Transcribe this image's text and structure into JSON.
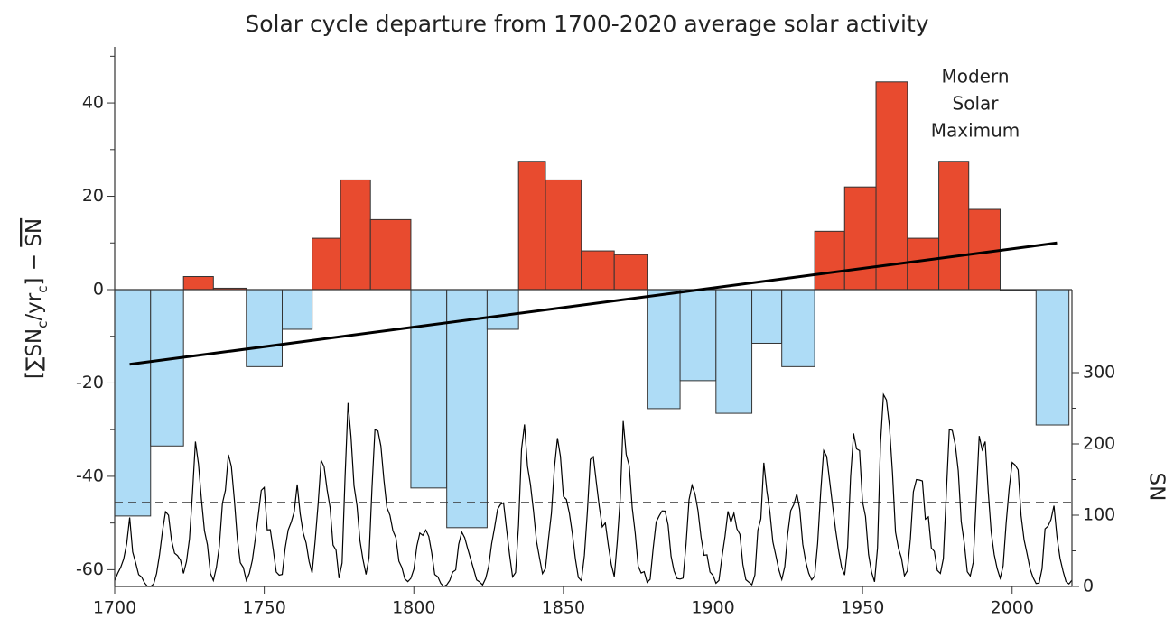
{
  "chart_data": {
    "type": "histogram",
    "title": "Solar cycle departure from 1700-2020 average solar activity",
    "ylabel_parts": [
      "[∑SN",
      "c",
      "/yr",
      "c",
      "] − ",
      "SN"
    ],
    "y2label": "SN",
    "annotation": [
      "Modern",
      "Solar",
      "Maximum"
    ],
    "bins": [
      1700,
      1712,
      1723,
      1733,
      1744,
      1756,
      1766,
      1775.5,
      1785.5,
      1799,
      1811,
      1824.5,
      1835,
      1844,
      1856,
      1867,
      1878,
      1889,
      1901,
      1913,
      1923,
      1934,
      1944,
      1954.5,
      1965,
      1975.5,
      1985.5,
      1996,
      2008,
      2019
    ],
    "values": [
      -48.5,
      -33.5,
      2.8,
      0.3,
      -16.5,
      -8.5,
      11,
      23.5,
      15,
      -42.5,
      -51,
      -8.5,
      27.5,
      23.5,
      8.3,
      7.5,
      -25.5,
      -19.5,
      -26.5,
      -11.5,
      -16.5,
      12.5,
      22,
      44.5,
      11,
      27.5,
      17.2,
      -0.2,
      -29
    ],
    "positive_color": "#e84b2f",
    "negative_color": "#aedcf6",
    "trend": {
      "color": "#000000",
      "x": [
        1705,
        2015
      ],
      "values": [
        -16,
        10
      ]
    },
    "sunspots": {
      "axis": "y2",
      "color": "#000000",
      "x": [
        1700,
        1701,
        1702,
        1703,
        1704,
        1705,
        1706,
        1707,
        1708,
        1709,
        1710,
        1711,
        1712,
        1713,
        1714,
        1715,
        1716,
        1717,
        1718,
        1719,
        1720,
        1721,
        1722,
        1723,
        1724,
        1725,
        1726,
        1727,
        1728,
        1729,
        1730,
        1731,
        1732,
        1733,
        1734,
        1735,
        1736,
        1737,
        1738,
        1739,
        1740,
        1741,
        1742,
        1743,
        1744,
        1745,
        1746,
        1747,
        1748,
        1749,
        1750,
        1751,
        1752,
        1753,
        1754,
        1755,
        1756,
        1757,
        1758,
        1759,
        1760,
        1761,
        1762,
        1763,
        1764,
        1765,
        1766,
        1767,
        1768,
        1769,
        1770,
        1771,
        1772,
        1773,
        1774,
        1775,
        1776,
        1777,
        1778,
        1779,
        1780,
        1781,
        1782,
        1783,
        1784,
        1785,
        1786,
        1787,
        1788,
        1789,
        1790,
        1791,
        1792,
        1793,
        1794,
        1795,
        1796,
        1797,
        1798,
        1799,
        1800,
        1801,
        1802,
        1803,
        1804,
        1805,
        1806,
        1807,
        1808,
        1809,
        1810,
        1811,
        1812,
        1813,
        1814,
        1815,
        1816,
        1817,
        1818,
        1819,
        1820,
        1821,
        1822,
        1823,
        1824,
        1825,
        1826,
        1827,
        1828,
        1829,
        1830,
        1831,
        1832,
        1833,
        1834,
        1835,
        1836,
        1837,
        1838,
        1839,
        1840,
        1841,
        1842,
        1843,
        1844,
        1845,
        1846,
        1847,
        1848,
        1849,
        1850,
        1851,
        1852,
        1853,
        1854,
        1855,
        1856,
        1857,
        1858,
        1859,
        1860,
        1861,
        1862,
        1863,
        1864,
        1865,
        1866,
        1867,
        1868,
        1869,
        1870,
        1871,
        1872,
        1873,
        1874,
        1875,
        1876,
        1877,
        1878,
        1879,
        1880,
        1881,
        1882,
        1883,
        1884,
        1885,
        1886,
        1887,
        1888,
        1889,
        1890,
        1891,
        1892,
        1893,
        1894,
        1895,
        1896,
        1897,
        1898,
        1899,
        1900,
        1901,
        1902,
        1903,
        1904,
        1905,
        1906,
        1907,
        1908,
        1909,
        1910,
        1911,
        1912,
        1913,
        1914,
        1915,
        1916,
        1917,
        1918,
        1919,
        1920,
        1921,
        1922,
        1923,
        1924,
        1925,
        1926,
        1927,
        1928,
        1929,
        1930,
        1931,
        1932,
        1933,
        1934,
        1935,
        1936,
        1937,
        1938,
        1939,
        1940,
        1941,
        1942,
        1943,
        1944,
        1945,
        1946,
        1947,
        1948,
        1949,
        1950,
        1951,
        1952,
        1953,
        1954,
        1955,
        1956,
        1957,
        1958,
        1959,
        1960,
        1961,
        1962,
        1963,
        1964,
        1965,
        1966,
        1967,
        1968,
        1969,
        1970,
        1971,
        1972,
        1973,
        1974,
        1975,
        1976,
        1977,
        1978,
        1979,
        1980,
        1981,
        1982,
        1983,
        1984,
        1985,
        1986,
        1987,
        1988,
        1989,
        1990,
        1991,
        1992,
        1993,
        1994,
        1995,
        1996,
        1997,
        1998,
        1999,
        2000,
        2001,
        2002,
        2003,
        2004,
        2005,
        2006,
        2007,
        2008,
        2009,
        2010,
        2011,
        2012,
        2013,
        2014,
        2015,
        2016,
        2017,
        2018,
        2019,
        2020
      ],
      "values": [
        8.3,
        18.3,
        26.7,
        38.3,
        60,
        96.7,
        48.3,
        33.3,
        16.7,
        13.3,
        5,
        0,
        0,
        3.3,
        18.3,
        45,
        78.3,
        105,
        100,
        65,
        46.7,
        43.3,
        36.7,
        18.3,
        35,
        66.7,
        130,
        203.3,
        171.7,
        121.7,
        78.3,
        58.3,
        18.3,
        8.3,
        26.7,
        56.7,
        116.7,
        135,
        185,
        168.3,
        121.7,
        66.7,
        33.3,
        26.7,
        8.3,
        18.3,
        36.7,
        66.7,
        100,
        134.8,
        139,
        79.5,
        79.7,
        51.2,
        20.3,
        16,
        17,
        54,
        79.3,
        90,
        104.8,
        143.2,
        102,
        75.2,
        60.7,
        34.8,
        19,
        63,
        116.3,
        176.8,
        168,
        136,
        110.8,
        58,
        51,
        11.7,
        33,
        154.2,
        257.3,
        209.8,
        141.3,
        113.5,
        64.2,
        38,
        17,
        40.2,
        138.2,
        220,
        218.2,
        196.8,
        149.8,
        111,
        100,
        78.2,
        68.3,
        35.5,
        26.7,
        10.7,
        6.8,
        11.3,
        24.2,
        56.7,
        75,
        71.8,
        79.2,
        70.3,
        46.8,
        16.8,
        13.5,
        4.2,
        0,
        2.3,
        8.3,
        20.3,
        23.2,
        59,
        76.3,
        68.3,
        52.9,
        38.5,
        24.2,
        9.2,
        6.3,
        2.2,
        11.4,
        28.2,
        59.9,
        83,
        108.5,
        115.2,
        117.4,
        80.8,
        44.3,
        13.4,
        19.5,
        85.8,
        192.7,
        227.3,
        168.7,
        143,
        105.5,
        63.3,
        40.3,
        18.1,
        25.1,
        65.8,
        102.7,
        166.3,
        208.3,
        182.5,
        126.3,
        122,
        102.7,
        74.1,
        39,
        12.7,
        8.2,
        43.4,
        104.4,
        178.3,
        182.2,
        146.6,
        112.1,
        83.5,
        89.2,
        57.8,
        30.7,
        13.9,
        62.8,
        123.6,
        232,
        185.3,
        169.2,
        110.1,
        74.5,
        28.3,
        18.9,
        20.7,
        5.7,
        10,
        53.7,
        90.5,
        99,
        106.1,
        105.8,
        86.3,
        42.4,
        21.8,
        11.2,
        10.4,
        11.8,
        59.5,
        121.7,
        142,
        130,
        106.6,
        69.4,
        43.8,
        44.4,
        20.2,
        15.7,
        4.6,
        8.5,
        40.8,
        70.1,
        105.5,
        90.1,
        102.8,
        80.9,
        73.2,
        30.9,
        9.5,
        6,
        2.4,
        16.1,
        79,
        95,
        173.6,
        134.6,
        105.7,
        62.7,
        43.5,
        23.7,
        9.7,
        27.9,
        74,
        106.5,
        114.7,
        129.7,
        108.2,
        59.4,
        35.1,
        18.6,
        9.2,
        14.6,
        60.2,
        132.8,
        190.6,
        182.6,
        148,
        113,
        79.2,
        50.8,
        27.1,
        16.1,
        55.3,
        154.3,
        214.7,
        193,
        190.7,
        118.9,
        98.3,
        45,
        20.1,
        6.6,
        54.2,
        200.7,
        269.3,
        261.7,
        225.1,
        159,
        76.4,
        53.4,
        39.9,
        15,
        22,
        66.8,
        132.9,
        150,
        149.4,
        148,
        94.4,
        97.6,
        54.1,
        49.2,
        22.5,
        18.4,
        39.3,
        131,
        220.1,
        218.9,
        198.9,
        162.4,
        91,
        60.5,
        20.6,
        14.8,
        33.9,
        123,
        211.1,
        191.8,
        203.3,
        133,
        76.1,
        44.9,
        25.1,
        11.6,
        28.9,
        88.3,
        136.3,
        173.9,
        170.4,
        163.6,
        99.3,
        65.3,
        45.8,
        24.7,
        12.6,
        4.2,
        4.8,
        24.9,
        80.8,
        84.5,
        94,
        113.3,
        69.8,
        39.8,
        21.7,
        7,
        3.6,
        8.8
      ]
    },
    "sunspot_mean_line": 118,
    "xlim": [
      1700,
      2020
    ],
    "xticks": [
      1700,
      1750,
      1800,
      1850,
      1900,
      1950,
      2000
    ],
    "ylim": [
      -63.6,
      52
    ],
    "yticks": [
      -60,
      -40,
      -20,
      0,
      20,
      40
    ],
    "yminor_ticks": [
      -50,
      -30,
      -10,
      10,
      30,
      50
    ],
    "y2lim": [
      0,
      757
    ],
    "y2ticks": [
      0,
      100,
      200,
      300
    ],
    "y2minor_ticks": [
      50,
      150,
      250
    ]
  }
}
